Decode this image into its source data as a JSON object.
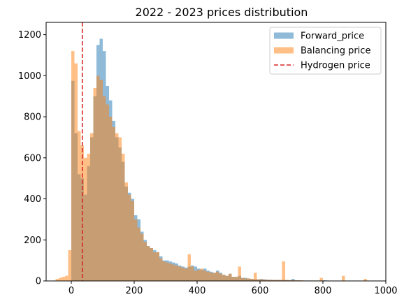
{
  "chart_data": {
    "type": "histogram",
    "title": "2022 - 2023 prices distribution",
    "xlabel": "",
    "ylabel": "",
    "xlim": [
      -80,
      1000
    ],
    "ylim": [
      0,
      1260
    ],
    "xticks": [
      0,
      200,
      400,
      600,
      800,
      1000
    ],
    "yticks": [
      0,
      200,
      400,
      600,
      800,
      1000,
      1200
    ],
    "grid": false,
    "legend_position": "top-right",
    "series": [
      {
        "name": "Forward_price",
        "color": "#1f77b4",
        "alpha": 0.5,
        "bin_width": 10,
        "bins": [
          [
            0,
            975
          ],
          [
            10,
            720
          ],
          [
            20,
            520
          ],
          [
            30,
            500
          ],
          [
            40,
            420
          ],
          [
            50,
            560
          ],
          [
            60,
            700
          ],
          [
            70,
            900
          ],
          [
            80,
            1150
          ],
          [
            90,
            1180
          ],
          [
            100,
            1120
          ],
          [
            110,
            950
          ],
          [
            120,
            880
          ],
          [
            130,
            780
          ],
          [
            140,
            700
          ],
          [
            150,
            650
          ],
          [
            160,
            580
          ],
          [
            170,
            460
          ],
          [
            180,
            430
          ],
          [
            190,
            400
          ],
          [
            200,
            320
          ],
          [
            210,
            300
          ],
          [
            220,
            240
          ],
          [
            230,
            200
          ],
          [
            240,
            170
          ],
          [
            250,
            160
          ],
          [
            260,
            150
          ],
          [
            270,
            140
          ],
          [
            280,
            120
          ],
          [
            290,
            100
          ],
          [
            300,
            100
          ],
          [
            310,
            95
          ],
          [
            320,
            90
          ],
          [
            330,
            85
          ],
          [
            340,
            75
          ],
          [
            350,
            70
          ],
          [
            360,
            65
          ],
          [
            370,
            70
          ],
          [
            380,
            75
          ],
          [
            390,
            70
          ],
          [
            400,
            60
          ],
          [
            410,
            55
          ],
          [
            420,
            60
          ],
          [
            430,
            50
          ],
          [
            440,
            45
          ],
          [
            450,
            40
          ],
          [
            460,
            50
          ],
          [
            470,
            40
          ],
          [
            480,
            30
          ],
          [
            490,
            25
          ],
          [
            500,
            35
          ],
          [
            510,
            20
          ],
          [
            520,
            20
          ],
          [
            530,
            25
          ],
          [
            540,
            15
          ],
          [
            550,
            15
          ],
          [
            560,
            12
          ],
          [
            570,
            10
          ],
          [
            580,
            8
          ],
          [
            590,
            8
          ],
          [
            600,
            10
          ],
          [
            610,
            8
          ],
          [
            620,
            6
          ],
          [
            630,
            6
          ],
          [
            640,
            5
          ],
          [
            650,
            5
          ],
          [
            660,
            5
          ],
          [
            670,
            5
          ],
          [
            680,
            4
          ],
          [
            690,
            4
          ],
          [
            700,
            10
          ],
          [
            710,
            3
          ],
          [
            720,
            3
          ],
          [
            730,
            2
          ],
          [
            740,
            2
          ],
          [
            750,
            2
          ],
          [
            760,
            2
          ],
          [
            770,
            2
          ],
          [
            780,
            2
          ],
          [
            790,
            2
          ],
          [
            800,
            3
          ],
          [
            810,
            2
          ],
          [
            820,
            1
          ],
          [
            830,
            1
          ],
          [
            840,
            1
          ],
          [
            850,
            1
          ],
          [
            860,
            1
          ],
          [
            870,
            1
          ],
          [
            880,
            1
          ],
          [
            890,
            1
          ]
        ]
      },
      {
        "name": "Balancing price",
        "color": "#ff7f0e",
        "alpha": 0.5,
        "bin_width": 10,
        "bins": [
          [
            -50,
            10
          ],
          [
            -40,
            15
          ],
          [
            -30,
            20
          ],
          [
            -20,
            25
          ],
          [
            -10,
            150
          ],
          [
            0,
            1120
          ],
          [
            10,
            1060
          ],
          [
            20,
            730
          ],
          [
            30,
            660
          ],
          [
            40,
            600
          ],
          [
            50,
            620
          ],
          [
            60,
            720
          ],
          [
            70,
            940
          ],
          [
            80,
            1000
          ],
          [
            90,
            980
          ],
          [
            100,
            900
          ],
          [
            110,
            860
          ],
          [
            120,
            800
          ],
          [
            130,
            750
          ],
          [
            140,
            720
          ],
          [
            150,
            700
          ],
          [
            160,
            620
          ],
          [
            170,
            480
          ],
          [
            180,
            420
          ],
          [
            190,
            390
          ],
          [
            200,
            300
          ],
          [
            210,
            260
          ],
          [
            220,
            230
          ],
          [
            230,
            190
          ],
          [
            240,
            170
          ],
          [
            250,
            160
          ],
          [
            260,
            140
          ],
          [
            270,
            140
          ],
          [
            280,
            110
          ],
          [
            290,
            95
          ],
          [
            300,
            90
          ],
          [
            310,
            85
          ],
          [
            320,
            80
          ],
          [
            330,
            75
          ],
          [
            340,
            70
          ],
          [
            350,
            65
          ],
          [
            360,
            60
          ],
          [
            370,
            130
          ],
          [
            380,
            70
          ],
          [
            390,
            50
          ],
          [
            400,
            55
          ],
          [
            410,
            60
          ],
          [
            420,
            50
          ],
          [
            430,
            45
          ],
          [
            440,
            40
          ],
          [
            450,
            40
          ],
          [
            460,
            45
          ],
          [
            470,
            35
          ],
          [
            480,
            30
          ],
          [
            490,
            25
          ],
          [
            500,
            35
          ],
          [
            510,
            20
          ],
          [
            520,
            20
          ],
          [
            530,
            70
          ],
          [
            540,
            15
          ],
          [
            550,
            12
          ],
          [
            560,
            12
          ],
          [
            570,
            10
          ],
          [
            580,
            40
          ],
          [
            590,
            8
          ],
          [
            600,
            8
          ],
          [
            610,
            6
          ],
          [
            620,
            6
          ],
          [
            630,
            5
          ],
          [
            640,
            5
          ],
          [
            650,
            5
          ],
          [
            660,
            5
          ],
          [
            670,
            95
          ],
          [
            680,
            5
          ],
          [
            690,
            4
          ],
          [
            700,
            4
          ],
          [
            710,
            3
          ],
          [
            720,
            3
          ],
          [
            730,
            3
          ],
          [
            740,
            2
          ],
          [
            750,
            2
          ],
          [
            760,
            2
          ],
          [
            770,
            2
          ],
          [
            780,
            2
          ],
          [
            790,
            15
          ],
          [
            800,
            2
          ],
          [
            810,
            1
          ],
          [
            820,
            1
          ],
          [
            830,
            1
          ],
          [
            840,
            1
          ],
          [
            850,
            1
          ],
          [
            860,
            25
          ],
          [
            870,
            1
          ],
          [
            880,
            1
          ],
          [
            890,
            1
          ],
          [
            900,
            1
          ],
          [
            910,
            1
          ],
          [
            920,
            1
          ],
          [
            930,
            10
          ],
          [
            940,
            1
          ]
        ]
      }
    ],
    "reference_lines": [
      {
        "name": "Hydrogen price",
        "x": 35,
        "color": "#d62728",
        "style": "dashed"
      }
    ]
  }
}
